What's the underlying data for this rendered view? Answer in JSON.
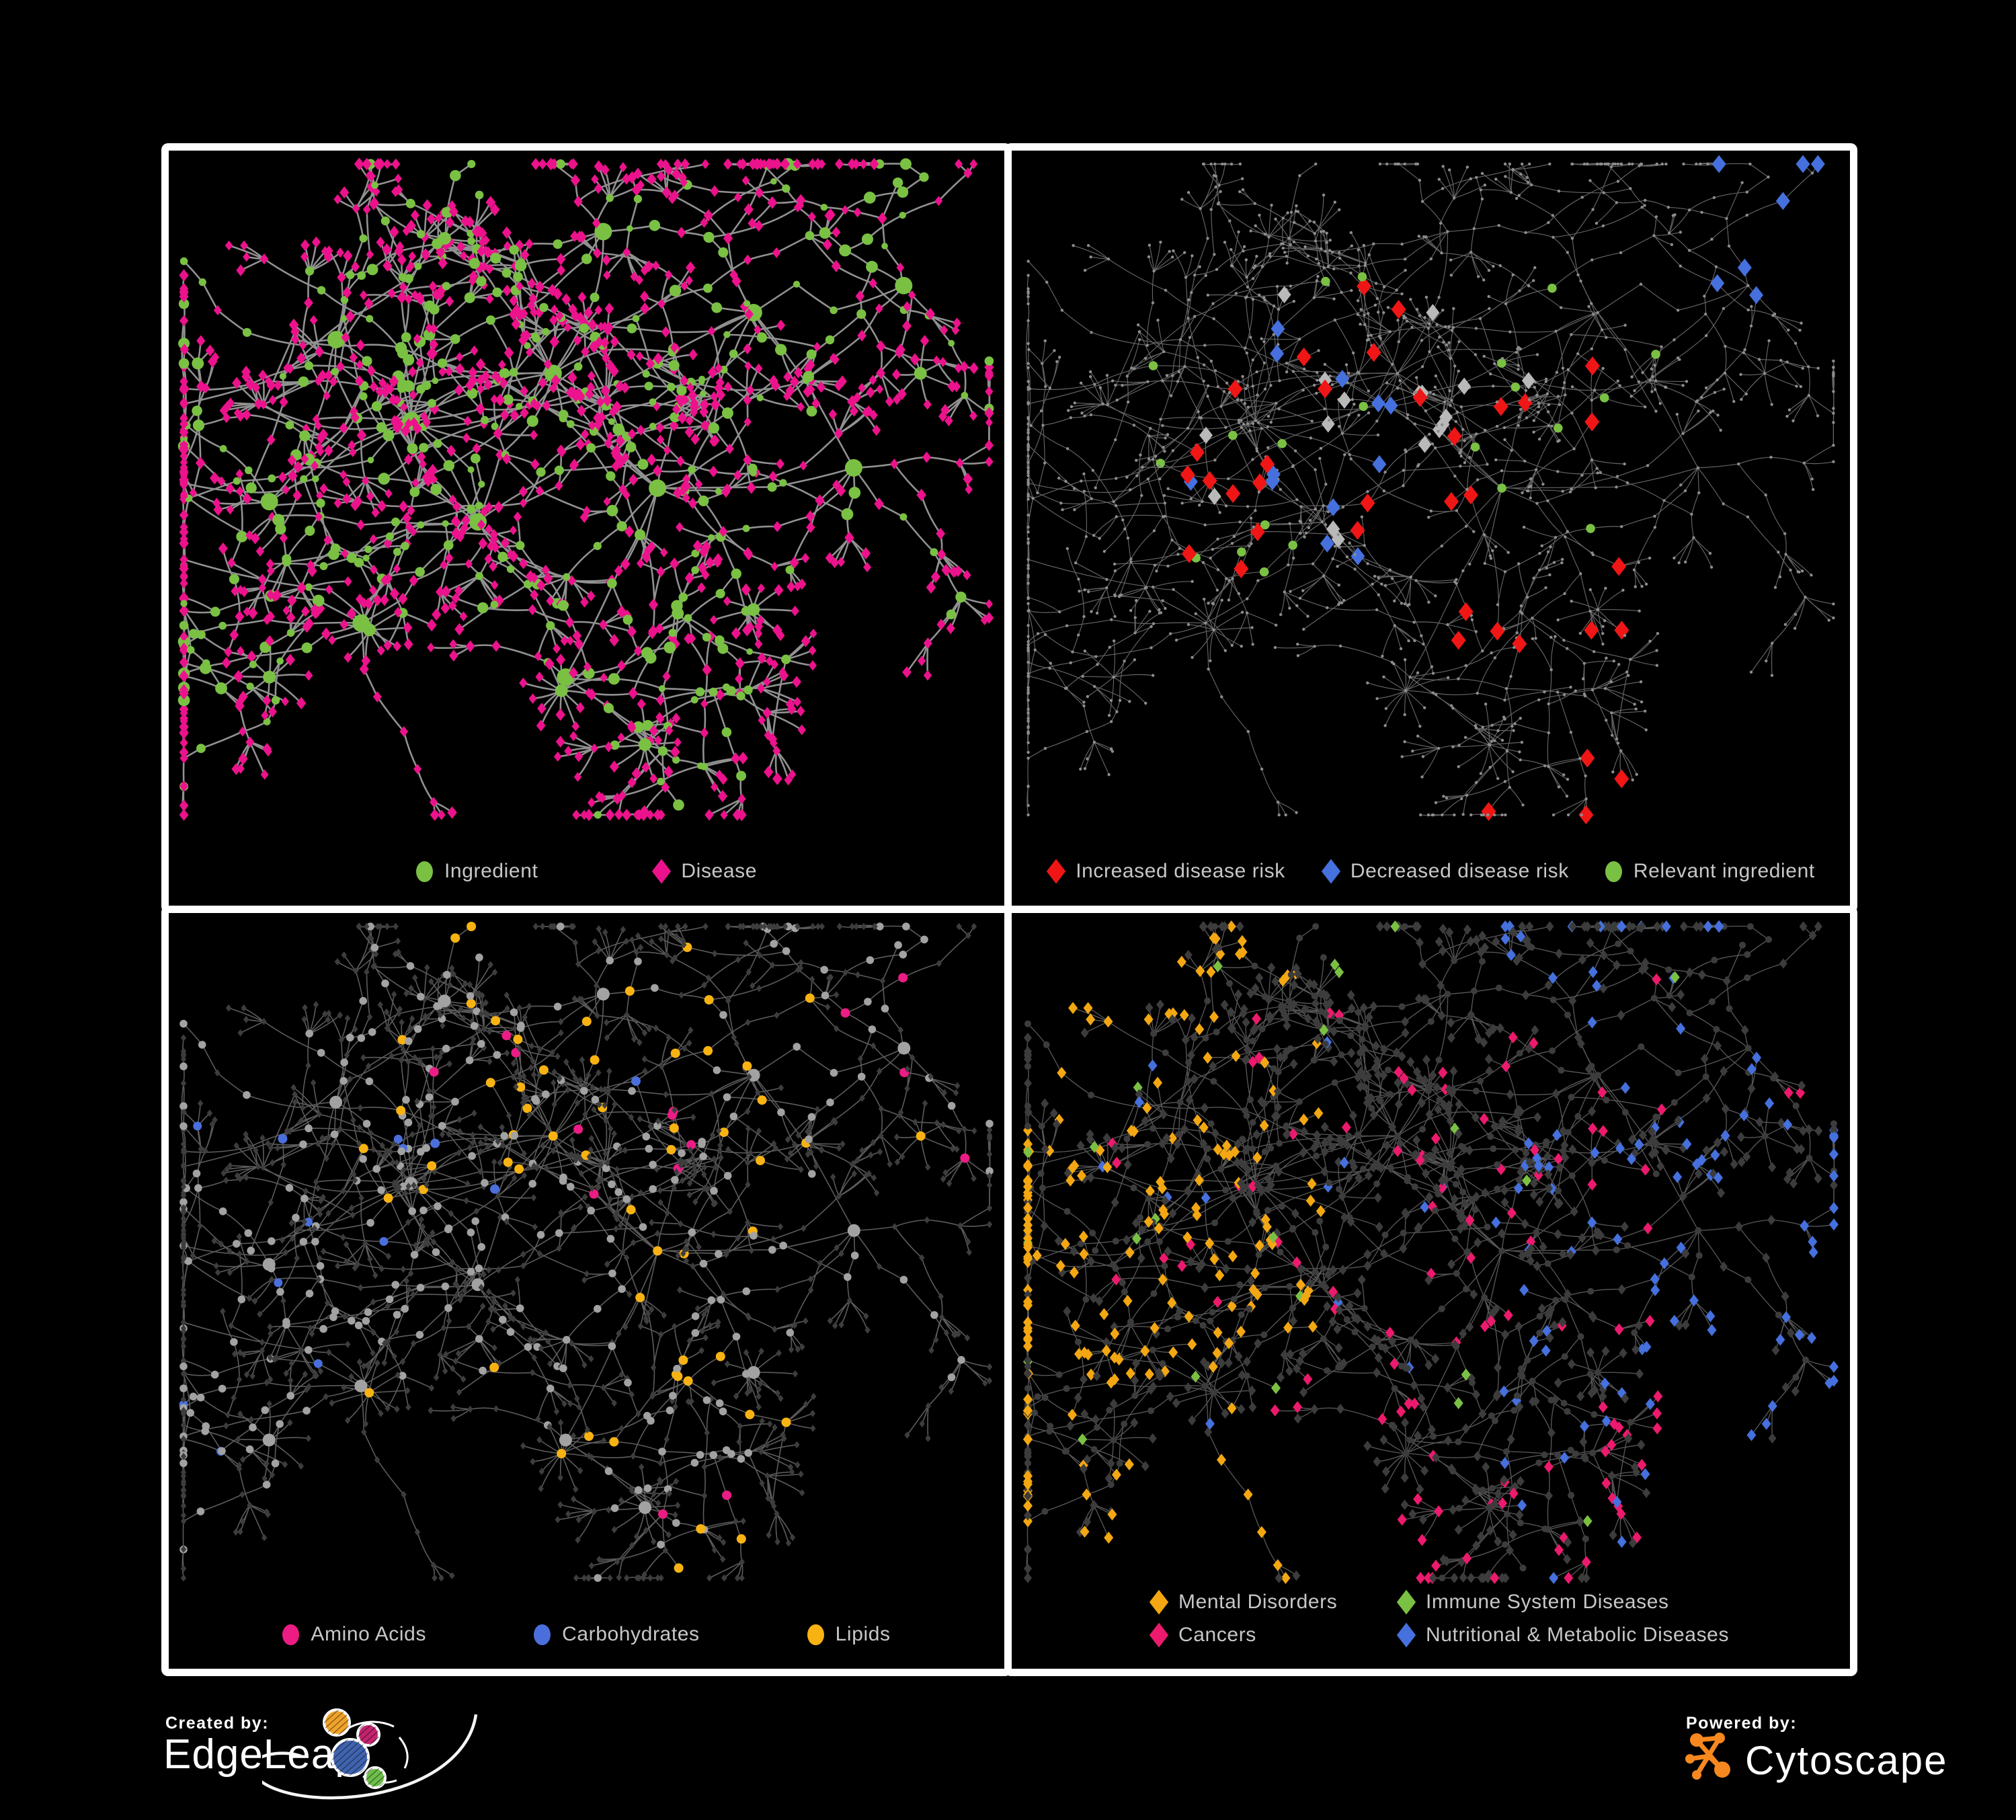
{
  "branding": {
    "created_by_label": "Created by:",
    "created_by_name": "EdgeLeap",
    "powered_by_label": "Powered by:",
    "powered_by_name": "Cytoscape"
  },
  "colors": {
    "background": "#000000",
    "panel_border": "#ffffff",
    "legend_text": "#c7c7c7",
    "ingredient_green": "#7AC143",
    "disease_pink": "#EC128C",
    "increased_red": "#F01616",
    "decreased_blue": "#4570DD",
    "neutral_gray": "#B9B9B9",
    "amino_pink": "#EC1C85",
    "carbohydrates_blue": "#4A6FDC",
    "lipids_orange": "#F8B312",
    "mental_orange": "#F3A712",
    "immune_green": "#7AC143",
    "cancers_pink": "#EC1A6D",
    "nutritional_blue": "#4570DD",
    "cytoscape_orange": "#F6881F",
    "edgeleap_logo_orange": "#F0A32A",
    "edgeleap_logo_pink": "#C3246E",
    "edgeleap_logo_blue": "#4063AE",
    "edgeleap_logo_green": "#6EBE4A"
  },
  "network": {
    "node_shape_meaning": {
      "circle": "ingredient",
      "diamond": "disease"
    },
    "panel_count": 4
  },
  "panels": [
    {
      "id": "ingredient-disease",
      "legend": [
        {
          "label": "Ingredient",
          "shape": "circle",
          "color": "#7AC143"
        },
        {
          "label": "Disease",
          "shape": "diamond",
          "color": "#EC128C"
        }
      ]
    },
    {
      "id": "disease-risk",
      "legend": [
        {
          "label": "Increased disease risk",
          "shape": "diamond",
          "color": "#F01616"
        },
        {
          "label": "Decreased disease risk",
          "shape": "diamond",
          "color": "#4570DD"
        },
        {
          "label": "Relevant ingredient",
          "shape": "circle",
          "color": "#7AC143"
        }
      ]
    },
    {
      "id": "nutrient-classes",
      "legend": [
        {
          "label": "Amino Acids",
          "shape": "circle",
          "color": "#EC1C85"
        },
        {
          "label": "Carbohydrates",
          "shape": "circle",
          "color": "#4A6FDC"
        },
        {
          "label": "Lipids",
          "shape": "circle",
          "color": "#F8B312"
        }
      ]
    },
    {
      "id": "disease-classes",
      "legend": [
        {
          "label": "Mental Disorders",
          "shape": "diamond",
          "color": "#F3A712"
        },
        {
          "label": "Immune System Diseases",
          "shape": "diamond",
          "color": "#7AC143"
        },
        {
          "label": "Cancers",
          "shape": "diamond",
          "color": "#EC1A6D"
        },
        {
          "label": "Nutritional & Metabolic Diseases",
          "shape": "diamond",
          "color": "#4570DD"
        }
      ]
    }
  ]
}
